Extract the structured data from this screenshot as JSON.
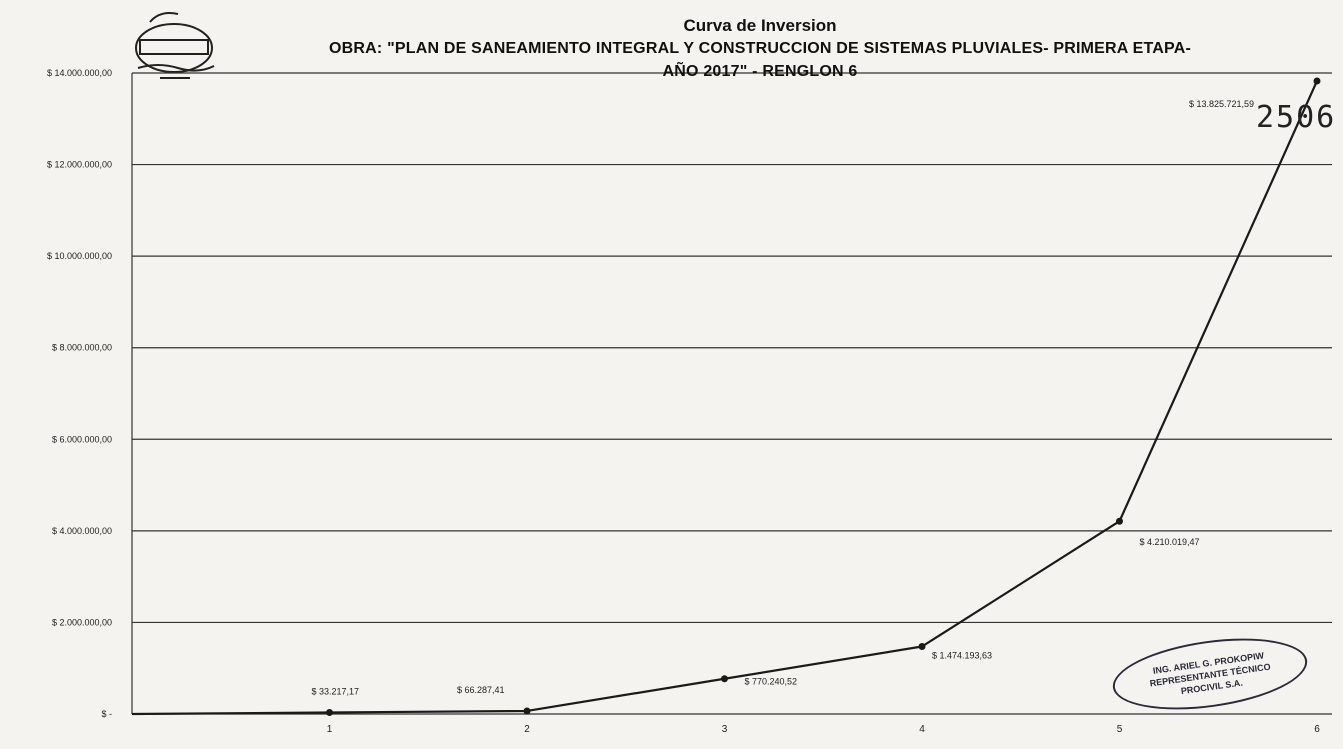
{
  "chart_data": {
    "type": "line",
    "title": "Curva de Inversion",
    "subtitle_line1": "OBRA: \"PLAN DE SANEAMIENTO INTEGRAL Y CONSTRUCCION DE SISTEMAS PLUVIALES- PRIMERA ETAPA-",
    "subtitle_line2": "AÑO 2017\" - RENGLON 6",
    "x": [
      0,
      1,
      2,
      3,
      4,
      5,
      6
    ],
    "x_tick_labels": [
      "1",
      "2",
      "3",
      "4",
      "5",
      "6"
    ],
    "values": [
      0,
      33217.17,
      66287.41,
      770240.52,
      1474193.63,
      4210019.47,
      13825721.59
    ],
    "data_labels": [
      "",
      "$ 33.217,17",
      "$ 66.287,41",
      "$ 770.240,52",
      "$ 1.474.193,63",
      "$ 4.210.019,47",
      "$ 13.825.721,59"
    ],
    "y_ticks": [
      0,
      2000000,
      4000000,
      6000000,
      8000000,
      10000000,
      12000000,
      14000000
    ],
    "y_tick_labels": [
      "$ -",
      "$ 2.000.000,00",
      "$ 4.000.000,00",
      "$ 6.000.000,00",
      "$ 8.000.000,00",
      "$ 10.000.000,00",
      "$ 12.000.000,00",
      "$ 14.000.000,00"
    ],
    "ylim": [
      0,
      14000000
    ],
    "grid": true,
    "legend": "none",
    "line_color": "#1a1a1a"
  },
  "annotations": {
    "stamp_number": "2506",
    "technician_stamp": [
      "ING. ARIEL G. PROKOPIW",
      "REPRESENTANTE TÉCNICO",
      "PROCIVIL S.A."
    ]
  }
}
